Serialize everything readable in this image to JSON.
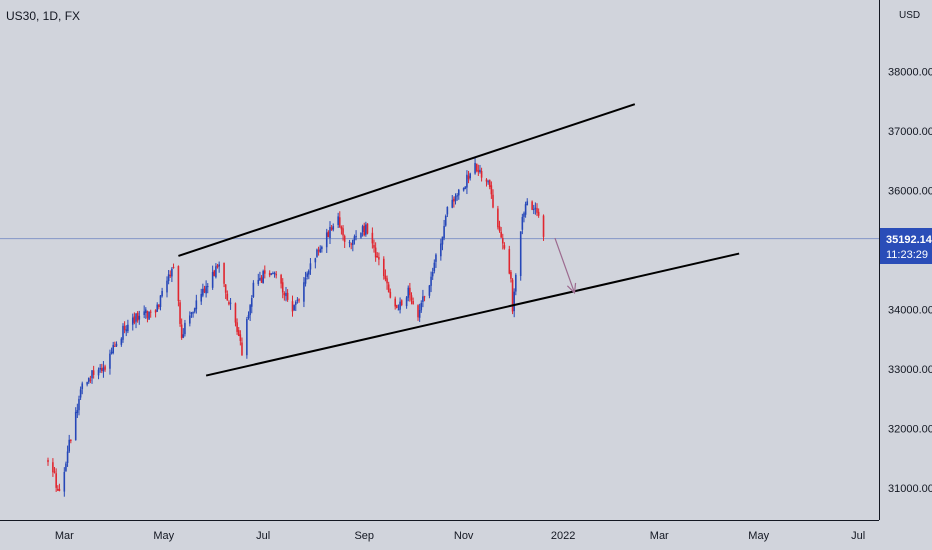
{
  "symbol_label": "US30, 1D, FX",
  "currency": "USD",
  "last_price": "35192.14",
  "countdown": "11:23:29",
  "colors": {
    "background": "#d1d4dc",
    "up": "#2647b8",
    "down": "#e0262f",
    "price_line": "#8597c8",
    "badge": "#2a4db8",
    "trendline": "#000000",
    "arrow": "#9c6a8f",
    "axis_line": "#131722"
  },
  "chart_data": {
    "type": "candlestick",
    "title": "US30, 1D, FX",
    "x_axis": {
      "tick_labels": [
        "Mar",
        "May",
        "Jul",
        "Sep",
        "Nov",
        "2022",
        "Mar",
        "May",
        "Jul"
      ]
    },
    "y_axis": {
      "unit": "USD",
      "tick_labels": [
        "31000.00",
        "32000.00",
        "33000.00",
        "34000.00",
        "36000.00",
        "37000.00",
        "38000.00"
      ],
      "visible_range": [
        30550,
        39050
      ]
    },
    "last_price": 35192.14,
    "key_points": [
      {
        "date": "2021-02-19",
        "close": 31500
      },
      {
        "date": "2021-02-26",
        "close": 30930
      },
      {
        "date": "2021-03-12",
        "close": 32780
      },
      {
        "date": "2021-03-26",
        "close": 33070
      },
      {
        "date": "2021-04-09",
        "close": 33800
      },
      {
        "date": "2021-04-26",
        "close": 33980
      },
      {
        "date": "2021-05-07",
        "close": 34780
      },
      {
        "date": "2021-05-12",
        "close": 33590
      },
      {
        "date": "2021-05-20",
        "close": 34100
      },
      {
        "date": "2021-06-04",
        "close": 34760
      },
      {
        "date": "2021-06-18",
        "close": 33290
      },
      {
        "date": "2021-06-25",
        "close": 34420
      },
      {
        "date": "2021-07-07",
        "close": 34700
      },
      {
        "date": "2021-07-19",
        "close": 33960
      },
      {
        "date": "2021-08-02",
        "close": 34900
      },
      {
        "date": "2021-08-16",
        "close": 35550
      },
      {
        "date": "2021-08-20",
        "close": 35100
      },
      {
        "date": "2021-09-02",
        "close": 35350
      },
      {
        "date": "2021-09-20",
        "close": 34000
      },
      {
        "date": "2021-09-28",
        "close": 34280
      },
      {
        "date": "2021-10-04",
        "close": 33950
      },
      {
        "date": "2021-10-11",
        "close": 34400
      },
      {
        "date": "2021-10-22",
        "close": 35650
      },
      {
        "date": "2021-11-08",
        "close": 36400
      },
      {
        "date": "2021-11-16",
        "close": 36080
      },
      {
        "date": "2021-11-26",
        "close": 35000
      },
      {
        "date": "2021-11-30",
        "close": 34440
      },
      {
        "date": "2021-12-01",
        "close": 34050
      },
      {
        "date": "2021-12-06",
        "close": 35400
      },
      {
        "date": "2021-12-10",
        "close": 35820
      },
      {
        "date": "2021-12-16",
        "close": 35700
      },
      {
        "date": "2021-12-20",
        "close": 35200
      }
    ],
    "trendlines": [
      {
        "name": "upper-channel",
        "start": {
          "date": "2021-05-10",
          "price": 34900
        },
        "end": {
          "date": "2022-02-14",
          "price": 37450
        }
      },
      {
        "name": "lower-channel",
        "start": {
          "date": "2021-05-27",
          "price": 32890
        },
        "end": {
          "date": "2022-04-19",
          "price": 34940
        }
      }
    ],
    "projection_arrow": {
      "start": {
        "date": "2021-12-27",
        "price": 35200
      },
      "end": {
        "date": "2022-01-08",
        "price": 34280
      }
    },
    "grid": false,
    "legend": "none"
  }
}
